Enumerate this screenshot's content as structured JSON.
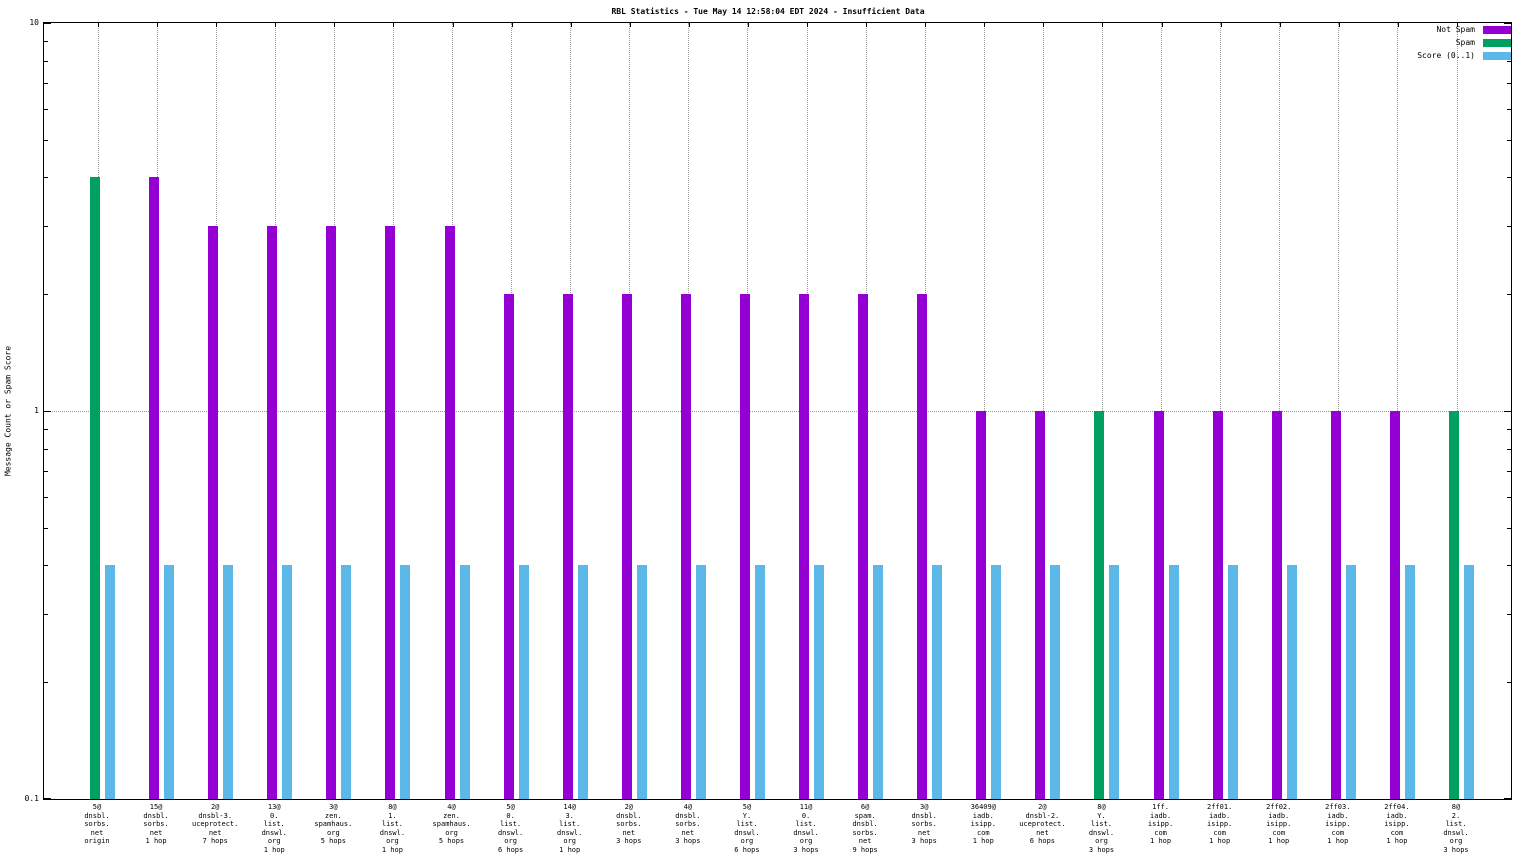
{
  "chart_data": {
    "type": "bar",
    "title": "RBL Statistics - Tue May 14 12:58:04 EDT 2024 - Insufficient Data",
    "ylabel": "Message Count or Spam Score",
    "yscale": "log",
    "ylim": [
      0.1,
      10
    ],
    "yticks": [
      {
        "value": 0.1,
        "label": "0.1"
      },
      {
        "value": 1,
        "label": "1"
      },
      {
        "value": 10,
        "label": "10"
      }
    ],
    "legend_position": "top-right",
    "grid": true,
    "colors": {
      "not_spam": "#9400d3",
      "spam": "#00a060",
      "score": "#5cb8e8"
    },
    "legend": [
      {
        "label": "Not Spam",
        "color": "#9400d3"
      },
      {
        "label": "Spam",
        "color": "#00a060"
      },
      {
        "label": "Score (0..1)",
        "color": "#5cb8e8"
      }
    ],
    "bars": [
      {
        "label_lines": [
          "5@",
          "dnsbl.",
          "sorbs.",
          "net",
          "origin"
        ],
        "series": "Spam",
        "value": 4,
        "score": 0.4
      },
      {
        "label_lines": [
          "15@",
          "dnsbl.",
          "sorbs.",
          "net",
          "1 hop"
        ],
        "series": "Not Spam",
        "value": 4,
        "score": 0.4
      },
      {
        "label_lines": [
          "2@",
          "dnsbl-3.",
          "uceprotect.",
          "net",
          "7 hops"
        ],
        "series": "Not Spam",
        "value": 3,
        "score": 0.4
      },
      {
        "label_lines": [
          "13@",
          "0.",
          "list.",
          "dnswl.",
          "org",
          "1 hop"
        ],
        "series": "Not Spam",
        "value": 3,
        "score": 0.4
      },
      {
        "label_lines": [
          "3@",
          "zen.",
          "spamhaus.",
          "org",
          "5 hops"
        ],
        "series": "Not Spam",
        "value": 3,
        "score": 0.4
      },
      {
        "label_lines": [
          "8@",
          "1.",
          "list.",
          "dnswl.",
          "org",
          "1 hop"
        ],
        "series": "Not Spam",
        "value": 3,
        "score": 0.4
      },
      {
        "label_lines": [
          "4@",
          "zen.",
          "spamhaus.",
          "org",
          "5 hops"
        ],
        "series": "Not Spam",
        "value": 3,
        "score": 0.4
      },
      {
        "label_lines": [
          "5@",
          "0.",
          "list.",
          "dnswl.",
          "org",
          "6 hops"
        ],
        "series": "Not Spam",
        "value": 2,
        "score": 0.4
      },
      {
        "label_lines": [
          "14@",
          "3.",
          "list.",
          "dnswl.",
          "org",
          "1 hop"
        ],
        "series": "Not Spam",
        "value": 2,
        "score": 0.4
      },
      {
        "label_lines": [
          "2@",
          "dnsbl.",
          "sorbs.",
          "net",
          "3 hops"
        ],
        "series": "Not Spam",
        "value": 2,
        "score": 0.4
      },
      {
        "label_lines": [
          "4@",
          "dnsbl.",
          "sorbs.",
          "net",
          "3 hops"
        ],
        "series": "Not Spam",
        "value": 2,
        "score": 0.4
      },
      {
        "label_lines": [
          "5@",
          "Y.",
          "list.",
          "dnswl.",
          "org",
          "6 hops"
        ],
        "series": "Not Spam",
        "value": 2,
        "score": 0.4
      },
      {
        "label_lines": [
          "11@",
          "0.",
          "list.",
          "dnswl.",
          "org",
          "3 hops"
        ],
        "series": "Not Spam",
        "value": 2,
        "score": 0.4
      },
      {
        "label_lines": [
          "6@",
          "spam.",
          "dnsbl.",
          "sorbs.",
          "net",
          "9 hops"
        ],
        "series": "Not Spam",
        "value": 2,
        "score": 0.4
      },
      {
        "label_lines": [
          "3@",
          "dnsbl.",
          "sorbs.",
          "net",
          "3 hops"
        ],
        "series": "Not Spam",
        "value": 2,
        "score": 0.4
      },
      {
        "label_lines": [
          "36409@",
          "iadb.",
          "isipp.",
          "com",
          "1 hop"
        ],
        "series": "Not Spam",
        "value": 1,
        "score": 0.4
      },
      {
        "label_lines": [
          "2@",
          "dnsbl-2.",
          "uceprotect.",
          "net",
          "6 hops"
        ],
        "series": "Not Spam",
        "value": 1,
        "score": 0.4
      },
      {
        "label_lines": [
          "8@",
          "Y.",
          "list.",
          "dnswl.",
          "org",
          "3 hops"
        ],
        "series": "Spam",
        "value": 1,
        "score": 0.4
      },
      {
        "label_lines": [
          "1ff.",
          "iadb.",
          "isipp.",
          "com",
          "1 hop"
        ],
        "series": "Not Spam",
        "value": 1,
        "score": 0.4
      },
      {
        "label_lines": [
          "2ff01.",
          "iadb.",
          "isipp.",
          "com",
          "1 hop"
        ],
        "series": "Not Spam",
        "value": 1,
        "score": 0.4
      },
      {
        "label_lines": [
          "2ff02.",
          "iadb.",
          "isipp.",
          "com",
          "1 hop"
        ],
        "series": "Not Spam",
        "value": 1,
        "score": 0.4
      },
      {
        "label_lines": [
          "2ff03.",
          "iadb.",
          "isipp.",
          "com",
          "1 hop"
        ],
        "series": "Not Spam",
        "value": 1,
        "score": 0.4
      },
      {
        "label_lines": [
          "2ff04.",
          "iadb.",
          "isipp.",
          "com",
          "1 hop"
        ],
        "series": "Not Spam",
        "value": 1,
        "score": 0.4
      },
      {
        "label_lines": [
          "8@",
          "2.",
          "list.",
          "dnswl.",
          "org",
          "3 hops"
        ],
        "series": "Spam",
        "value": 1,
        "score": 0.4
      }
    ]
  }
}
